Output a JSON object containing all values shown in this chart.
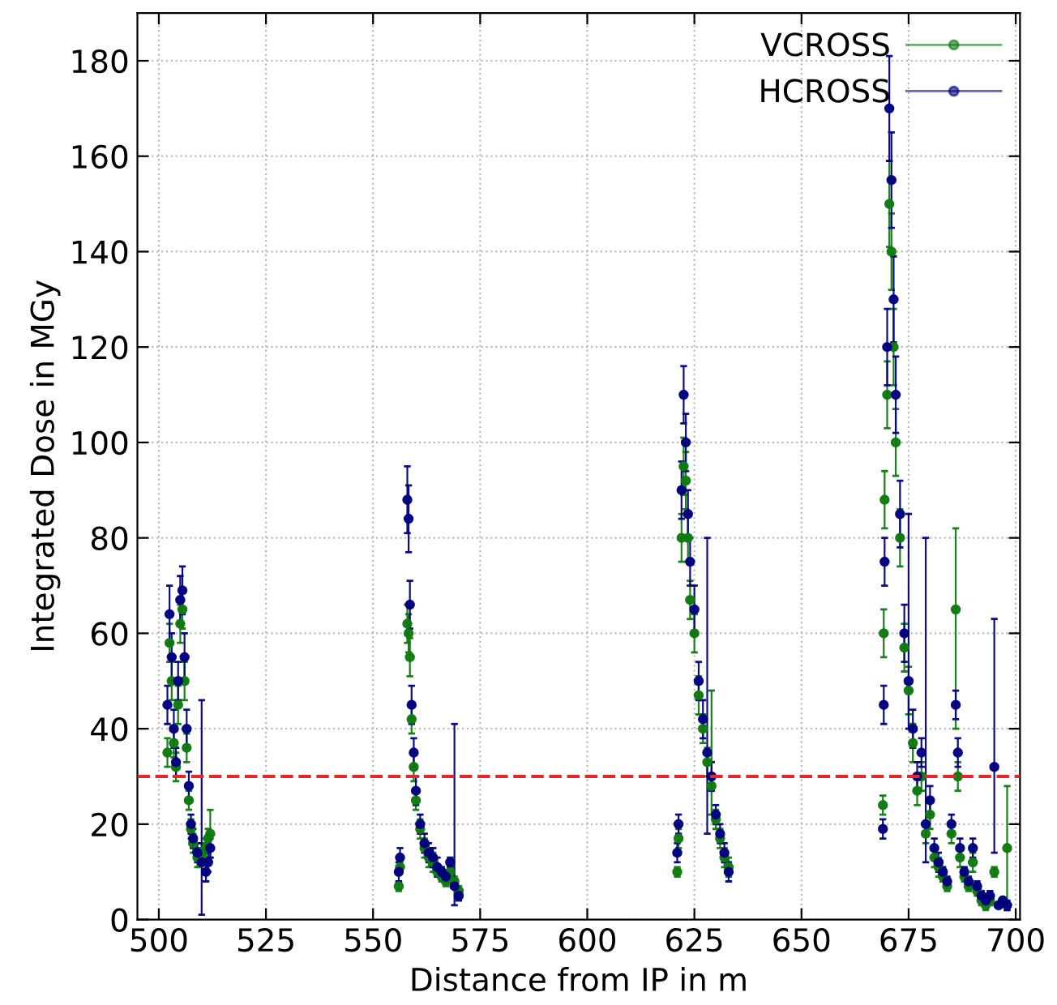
{
  "chart_data": {
    "type": "scatter",
    "xlabel": "Distance from IP in m",
    "ylabel": "Integrated Dose in MGy",
    "xlim": [
      495,
      701
    ],
    "xticks": [
      500,
      525,
      550,
      575,
      600,
      625,
      650,
      675,
      700
    ],
    "ylim": [
      0,
      190
    ],
    "yticks": [
      0,
      20,
      40,
      60,
      80,
      100,
      120,
      140,
      160,
      180
    ],
    "grid": true,
    "legend": "top right",
    "marker": "circle",
    "ref_lines": [
      {
        "axis": "y",
        "value": 30,
        "color": "#e8262a",
        "line_style": "dashed"
      }
    ],
    "series": [
      {
        "name": "VCROSS",
        "color": "#0f7a0f",
        "x": [
          502,
          502.5,
          503,
          503.5,
          504,
          504.5,
          505,
          505.5,
          506,
          506.5,
          507,
          507.5,
          508,
          509,
          510,
          511,
          511.5,
          512,
          556,
          556.3,
          558,
          558.3,
          558.6,
          559,
          559.5,
          560,
          561,
          562,
          563,
          564,
          565,
          566,
          567,
          568,
          569,
          570,
          621,
          621.3,
          622,
          622.5,
          623,
          623.5,
          624,
          625,
          626,
          627,
          628,
          629,
          630,
          631,
          632,
          633,
          669,
          669.2,
          669.4,
          670,
          670.5,
          671,
          671.5,
          672,
          673,
          674,
          675,
          676,
          677,
          678,
          679,
          680,
          681,
          682,
          683,
          684,
          685,
          686,
          686.5,
          687,
          688,
          689,
          690,
          691,
          692,
          693,
          694,
          695,
          696,
          697,
          698
        ],
        "values": [
          35,
          58,
          50,
          37,
          32,
          45,
          62,
          65,
          50,
          36,
          25,
          19,
          16,
          13,
          14,
          15,
          17,
          18,
          7,
          11,
          62,
          60,
          55,
          42,
          32,
          25,
          19,
          15,
          13,
          12,
          10,
          9,
          8,
          10,
          8,
          6,
          10,
          17,
          80,
          95,
          92,
          80,
          67,
          60,
          47,
          40,
          33,
          28,
          21,
          17,
          13,
          11,
          24,
          60,
          88,
          110,
          150,
          140,
          120,
          100,
          80,
          57,
          48,
          37,
          27,
          30,
          18,
          22,
          13,
          11,
          9,
          7,
          18,
          65,
          30,
          13,
          9,
          7,
          12,
          6,
          4,
          3,
          4,
          10,
          3,
          4,
          15
        ],
        "errors": [
          3,
          4,
          4,
          3,
          3,
          4,
          4,
          4,
          4,
          3,
          2,
          2,
          2,
          2,
          2,
          2,
          2,
          5,
          1,
          1,
          4,
          4,
          4,
          3,
          3,
          2,
          2,
          2,
          2,
          2,
          1,
          1,
          1,
          1,
          1,
          1,
          1,
          2,
          5,
          6,
          6,
          5,
          4,
          4,
          4,
          3,
          3,
          [
            22,
            48
          ],
          2,
          2,
          2,
          2,
          2,
          5,
          6,
          7,
          9,
          8,
          8,
          7,
          6,
          5,
          5,
          4,
          3,
          3,
          2,
          3,
          2,
          2,
          1,
          1,
          2,
          [
            40,
            82
          ],
          3,
          2,
          1,
          1,
          2,
          1,
          1,
          1,
          1,
          1,
          null,
          null,
          [
            2,
            28
          ]
        ]
      },
      {
        "name": "HCROSS",
        "color": "#00007f",
        "x": [
          502,
          502.5,
          503,
          503.5,
          504,
          504.5,
          505,
          505.5,
          506,
          506.5,
          507,
          507.5,
          508,
          509,
          510,
          511,
          511.5,
          512,
          556,
          556.3,
          558,
          558.3,
          558.6,
          559,
          559.5,
          560,
          561,
          562,
          563,
          564,
          565,
          566,
          567,
          568,
          569,
          570,
          621,
          621.3,
          622,
          622.5,
          623,
          623.5,
          624,
          625,
          626,
          627,
          628,
          629,
          630,
          631,
          632,
          633,
          669,
          669.2,
          669.4,
          670,
          670.5,
          671,
          671.5,
          672,
          673,
          674,
          675,
          676,
          677,
          678,
          679,
          680,
          681,
          682,
          683,
          684,
          685,
          686,
          686.5,
          687,
          688,
          689,
          690,
          691,
          692,
          693,
          694,
          695,
          696,
          697,
          698
        ],
        "values": [
          45,
          64,
          55,
          40,
          33,
          50,
          67,
          69,
          55,
          40,
          28,
          20,
          17,
          14,
          12,
          10,
          12,
          15,
          10,
          13,
          88,
          84,
          66,
          45,
          35,
          27,
          20,
          16,
          14,
          13,
          11,
          10,
          9,
          12,
          7,
          5,
          14,
          20,
          90,
          110,
          100,
          85,
          75,
          65,
          50,
          42,
          35,
          30,
          22,
          18,
          14,
          10,
          19,
          45,
          75,
          120,
          170,
          155,
          130,
          110,
          85,
          60,
          50,
          40,
          30,
          35,
          20,
          25,
          15,
          12,
          10,
          8,
          20,
          45,
          35,
          15,
          10,
          8,
          15,
          7,
          5,
          4,
          5,
          32,
          3,
          4,
          3
        ],
        "errors": [
          4,
          6,
          5,
          4,
          3,
          4,
          5,
          5,
          5,
          4,
          3,
          2,
          2,
          2,
          [
            1,
            46
          ],
          2,
          2,
          2,
          2,
          2,
          7,
          7,
          5,
          4,
          3,
          3,
          2,
          2,
          2,
          2,
          2,
          1,
          1,
          1,
          [
            3,
            41
          ],
          1,
          2,
          2,
          6,
          6,
          6,
          5,
          5,
          5,
          4,
          4,
          [
            18,
            80
          ],
          3,
          2,
          2,
          2,
          2,
          2,
          4,
          5,
          8,
          11,
          10,
          9,
          8,
          7,
          6,
          [
            40,
            85
          ],
          4,
          3,
          3,
          [
            12,
            80
          ],
          3,
          2,
          2,
          1,
          1,
          2,
          3,
          3,
          2,
          1,
          1,
          2,
          1,
          1,
          1,
          1,
          [
            14,
            63
          ],
          null,
          null,
          1
        ]
      }
    ]
  }
}
